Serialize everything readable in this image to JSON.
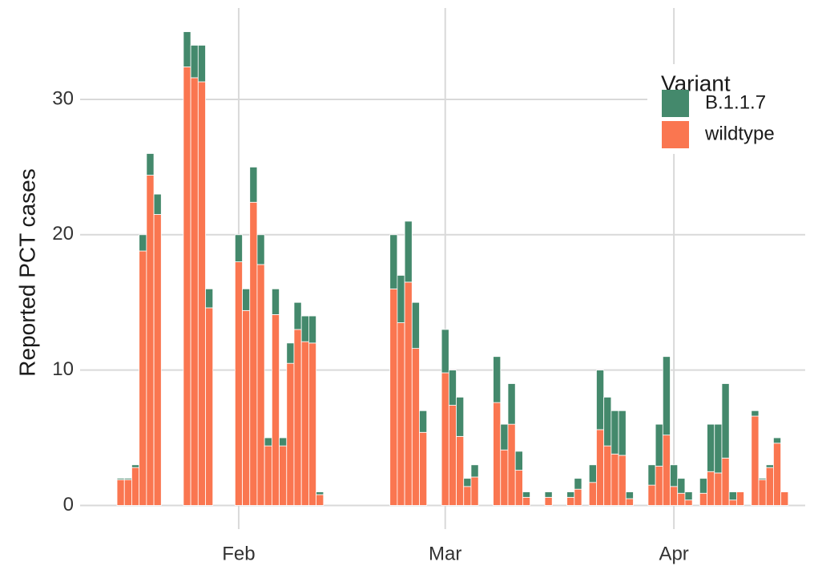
{
  "chart_data": {
    "type": "stacked_bar",
    "y_label": "Reported PCT cases",
    "legend_title": "Variant",
    "legend_position": "top-right",
    "grid": true,
    "x": [
      16,
      17,
      18,
      19,
      20,
      21,
      25,
      26,
      27,
      28,
      32,
      33,
      34,
      35,
      36,
      37,
      38,
      39,
      40,
      41,
      42,
      43,
      53,
      54,
      55,
      56,
      57,
      60,
      61,
      62,
      63,
      64,
      67,
      68,
      69,
      70,
      71,
      74,
      77,
      78,
      80,
      81,
      82,
      83,
      84,
      85,
      88,
      89,
      90,
      91,
      92,
      93,
      95,
      96,
      97,
      98,
      99,
      100,
      102,
      103,
      104,
      105,
      106
    ],
    "xlim": [
      10.5,
      108.8
    ],
    "xticks": [
      {
        "value": 32,
        "label": "Feb"
      },
      {
        "value": 60,
        "label": "Mar"
      },
      {
        "value": 91,
        "label": "Apr"
      }
    ],
    "ylim": [
      -1.75,
      36.75
    ],
    "yticks": [
      0,
      10,
      20,
      30
    ],
    "series": [
      {
        "name": "B.1.1.7",
        "color": "#44896c",
        "values": [
          0.1,
          0.1,
          0.2,
          1.2,
          1.6,
          1.5,
          2.6,
          2.4,
          2.7,
          1.4,
          2,
          1.6,
          2.6,
          2.2,
          0.6,
          1.9,
          0.6,
          1.5,
          2,
          1.9,
          2,
          0.2,
          4,
          3.5,
          4.5,
          3.4,
          1.6,
          3.2,
          2.6,
          2.9,
          0.6,
          0.9,
          3.4,
          1.9,
          3,
          1.4,
          0.4,
          0.4,
          0.4,
          0.8,
          1.3,
          4.4,
          3.6,
          3.2,
          3.3,
          0.5,
          1.5,
          3.1,
          5.8,
          1.6,
          1.1,
          0.6,
          1.1,
          3.5,
          3.6,
          5.5,
          0.6,
          0,
          0.4,
          0.1,
          0.2,
          0.4,
          0
        ]
      },
      {
        "name": "wildtype",
        "color": "#fa7650",
        "values": [
          1.9,
          1.9,
          2.8,
          18.8,
          24.4,
          21.5,
          32.4,
          31.6,
          31.3,
          14.6,
          18,
          14.4,
          22.4,
          17.8,
          4.4,
          14.1,
          4.4,
          10.5,
          13,
          12.1,
          12,
          0.8,
          16,
          13.5,
          16.5,
          11.6,
          5.4,
          9.8,
          7.4,
          5.1,
          1.4,
          2.1,
          7.6,
          4.1,
          6,
          2.6,
          0.6,
          0.6,
          0.6,
          1.2,
          1.7,
          5.6,
          4.4,
          3.8,
          3.7,
          0.5,
          1.5,
          2.9,
          5.2,
          1.4,
          0.9,
          0.4,
          0.9,
          2.5,
          2.4,
          3.5,
          0.4,
          1,
          6.6,
          1.9,
          2.8,
          4.6,
          1
        ]
      }
    ]
  }
}
